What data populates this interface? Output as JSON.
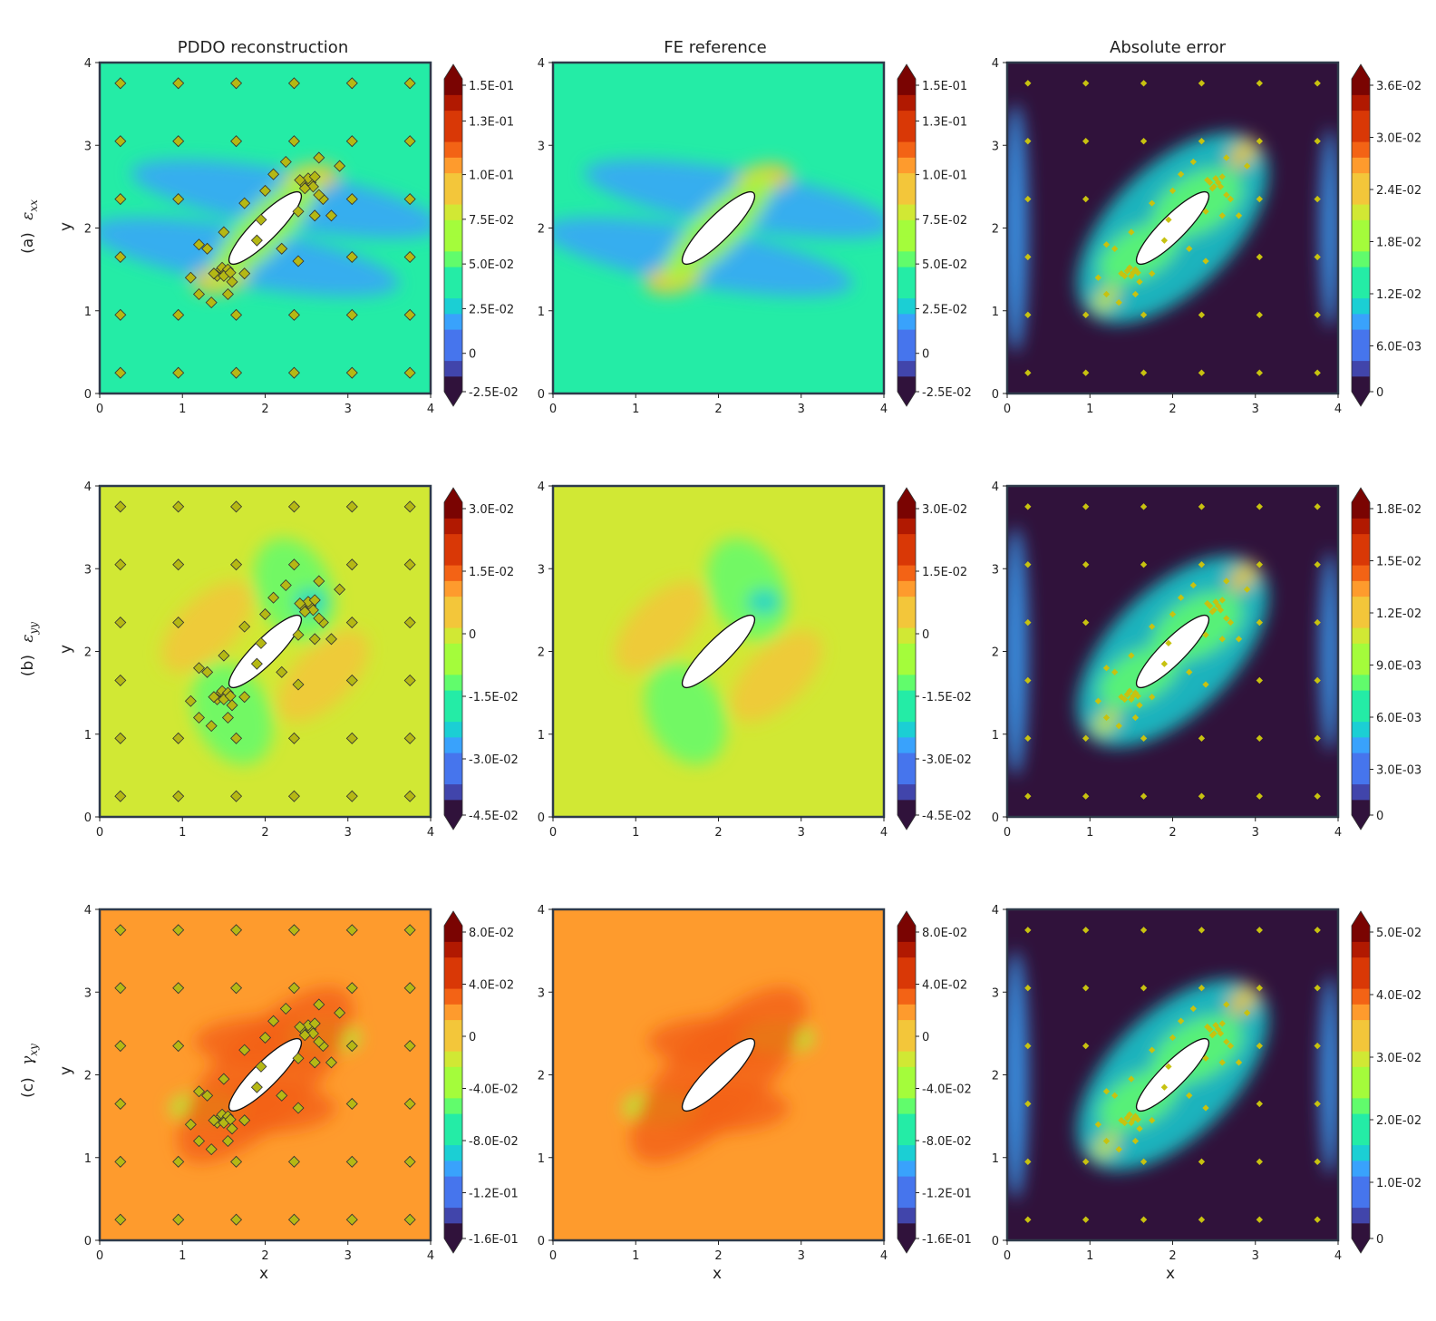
{
  "columns": [
    "PDDO reconstruction",
    "FE reference",
    "Absolute error"
  ],
  "rows": [
    {
      "tag": "(a)",
      "symbol": "ε",
      "sub": "xx"
    },
    {
      "tag": "(b)",
      "symbol": "ε",
      "sub": "yy"
    },
    {
      "tag": "(c)",
      "symbol": "γ",
      "sub": "xy"
    }
  ],
  "xlabel": "x",
  "ylabel": "y",
  "axis_ticks": [
    "0",
    "1",
    "2",
    "3",
    "4"
  ],
  "colormap": [
    "#30123b",
    "#4145ab",
    "#4675ed",
    "#39a2fc",
    "#1bcfd4",
    "#24eca6",
    "#61fc6c",
    "#a4fc3b",
    "#d1e834",
    "#f3c63a",
    "#fe9b2d",
    "#f36315",
    "#d93806",
    "#b11901",
    "#7a0402"
  ],
  "inclusion": {
    "center": [
      2.0,
      2.0
    ],
    "semi_major": 0.6,
    "semi_minor": 0.15,
    "angle_deg": 45
  },
  "chart_data": [
    {
      "type": "heatmap",
      "title": "PDDO reconstruction",
      "row": 0,
      "col": 0,
      "xlim": [
        0,
        4
      ],
      "ylim": [
        0,
        4
      ],
      "colorbar_ticks": [
        "-2.5E-02",
        "0",
        "2.5E-02",
        "5.0E-02",
        "7.5E-02",
        "1.0E-01",
        "1.3E-01",
        "1.5E-01"
      ],
      "colorbar_range": [
        -0.025,
        0.15
      ],
      "background_level": 0.38,
      "pattern": "xx",
      "sensor_markers": "large"
    },
    {
      "type": "heatmap",
      "title": "FE reference",
      "row": 0,
      "col": 1,
      "xlim": [
        0,
        4
      ],
      "ylim": [
        0,
        4
      ],
      "colorbar_ticks": [
        "-2.5E-02",
        "0",
        "2.5E-02",
        "5.0E-02",
        "7.5E-02",
        "1.0E-01",
        "1.3E-01",
        "1.5E-01"
      ],
      "colorbar_range": [
        -0.025,
        0.15
      ],
      "background_level": 0.34,
      "pattern": "xx",
      "sensor_markers": "none"
    },
    {
      "type": "heatmap",
      "title": "Absolute error",
      "row": 0,
      "col": 2,
      "xlim": [
        0,
        4
      ],
      "ylim": [
        0,
        4
      ],
      "colorbar_ticks": [
        "0",
        "6.0E-03",
        "1.2E-02",
        "1.8E-02",
        "2.4E-02",
        "3.0E-02",
        "3.6E-02"
      ],
      "colorbar_range": [
        0,
        0.036
      ],
      "background_level": 0.0,
      "pattern": "error",
      "sensor_markers": "small"
    },
    {
      "type": "heatmap",
      "title": "PDDO reconstruction",
      "row": 1,
      "col": 0,
      "xlim": [
        0,
        4
      ],
      "ylim": [
        0,
        4
      ],
      "colorbar_ticks": [
        "-4.5E-02",
        "-3.0E-02",
        "-1.5E-02",
        "0",
        "1.5E-02",
        "3.0E-02"
      ],
      "colorbar_range": [
        -0.045,
        0.03
      ],
      "background_level": 0.57,
      "pattern": "yy",
      "sensor_markers": "large"
    },
    {
      "type": "heatmap",
      "title": "FE reference",
      "row": 1,
      "col": 1,
      "xlim": [
        0,
        4
      ],
      "ylim": [
        0,
        4
      ],
      "colorbar_ticks": [
        "-4.5E-02",
        "-3.0E-02",
        "-1.5E-02",
        "0",
        "1.5E-02",
        "3.0E-02"
      ],
      "colorbar_range": [
        -0.045,
        0.03
      ],
      "background_level": 0.6,
      "pattern": "yy",
      "sensor_markers": "none"
    },
    {
      "type": "heatmap",
      "title": "Absolute error",
      "row": 1,
      "col": 2,
      "xlim": [
        0,
        4
      ],
      "ylim": [
        0,
        4
      ],
      "colorbar_ticks": [
        "0",
        "3.0E-03",
        "6.0E-03",
        "9.0E-03",
        "1.2E-02",
        "1.5E-02",
        "1.8E-02"
      ],
      "colorbar_range": [
        0,
        0.018
      ],
      "background_level": 0.0,
      "pattern": "error",
      "sensor_markers": "small"
    },
    {
      "type": "heatmap",
      "title": "PDDO reconstruction",
      "row": 2,
      "col": 0,
      "xlim": [
        0,
        4
      ],
      "ylim": [
        0,
        4
      ],
      "colorbar_ticks": [
        "-1.6E-01",
        "-1.2E-01",
        "-8.0E-02",
        "-4.0E-02",
        "0",
        "4.0E-02",
        "8.0E-02"
      ],
      "colorbar_range": [
        -0.16,
        0.08
      ],
      "background_level": 0.71,
      "pattern": "xy",
      "sensor_markers": "large"
    },
    {
      "type": "heatmap",
      "title": "FE reference",
      "row": 2,
      "col": 1,
      "xlim": [
        0,
        4
      ],
      "ylim": [
        0,
        4
      ],
      "colorbar_ticks": [
        "-1.6E-01",
        "-1.2E-01",
        "-8.0E-02",
        "-4.0E-02",
        "0",
        "4.0E-02",
        "8.0E-02"
      ],
      "colorbar_range": [
        -0.16,
        0.08
      ],
      "background_level": 0.72,
      "pattern": "xy",
      "sensor_markers": "none"
    },
    {
      "type": "heatmap",
      "title": "Absolute error",
      "row": 2,
      "col": 2,
      "xlim": [
        0,
        4
      ],
      "ylim": [
        0,
        4
      ],
      "colorbar_ticks": [
        "0",
        "1.0E-02",
        "2.0E-02",
        "3.0E-02",
        "4.0E-02",
        "5.0E-02"
      ],
      "colorbar_range": [
        0,
        0.05
      ],
      "background_level": 0.0,
      "pattern": "error",
      "sensor_markers": "small"
    }
  ],
  "sensors": [
    [
      0.25,
      0.25
    ],
    [
      0.95,
      0.25
    ],
    [
      1.65,
      0.25
    ],
    [
      2.35,
      0.25
    ],
    [
      3.05,
      0.25
    ],
    [
      3.75,
      0.25
    ],
    [
      0.25,
      0.95
    ],
    [
      0.95,
      0.95
    ],
    [
      1.65,
      0.95
    ],
    [
      2.35,
      0.95
    ],
    [
      3.05,
      0.95
    ],
    [
      3.75,
      0.95
    ],
    [
      0.25,
      1.65
    ],
    [
      3.05,
      1.65
    ],
    [
      3.75,
      1.65
    ],
    [
      0.25,
      2.35
    ],
    [
      0.95,
      2.35
    ],
    [
      3.05,
      2.35
    ],
    [
      3.75,
      2.35
    ],
    [
      0.25,
      3.05
    ],
    [
      0.95,
      3.05
    ],
    [
      1.65,
      3.05
    ],
    [
      2.35,
      3.05
    ],
    [
      3.05,
      3.05
    ],
    [
      3.75,
      3.05
    ],
    [
      0.25,
      3.75
    ],
    [
      0.95,
      3.75
    ],
    [
      1.65,
      3.75
    ],
    [
      2.35,
      3.75
    ],
    [
      3.05,
      3.75
    ],
    [
      3.75,
      3.75
    ],
    [
      1.45,
      1.48
    ],
    [
      1.48,
      1.52
    ],
    [
      1.52,
      1.46
    ],
    [
      1.55,
      1.5
    ],
    [
      1.42,
      1.42
    ],
    [
      1.38,
      1.45
    ],
    [
      1.5,
      1.42
    ],
    [
      1.58,
      1.46
    ],
    [
      2.45,
      2.55
    ],
    [
      2.5,
      2.5
    ],
    [
      2.55,
      2.55
    ],
    [
      2.52,
      2.6
    ],
    [
      2.58,
      2.5
    ],
    [
      2.6,
      2.62
    ],
    [
      2.48,
      2.48
    ],
    [
      2.42,
      2.58
    ],
    [
      1.2,
      1.8
    ],
    [
      1.1,
      1.4
    ],
    [
      1.3,
      1.75
    ],
    [
      1.6,
      1.35
    ],
    [
      1.75,
      1.45
    ],
    [
      1.9,
      1.85
    ],
    [
      2.2,
      1.75
    ],
    [
      2.4,
      1.6
    ],
    [
      2.1,
      2.65
    ],
    [
      2.25,
      2.8
    ],
    [
      2.0,
      2.45
    ],
    [
      2.7,
      2.35
    ],
    [
      2.8,
      2.15
    ],
    [
      2.9,
      2.75
    ],
    [
      2.65,
      2.85
    ],
    [
      2.4,
      2.2
    ],
    [
      1.35,
      1.1
    ],
    [
      1.55,
      1.2
    ],
    [
      1.2,
      1.2
    ],
    [
      1.75,
      2.3
    ],
    [
      1.95,
      2.1
    ],
    [
      2.6,
      2.15
    ],
    [
      2.65,
      2.4
    ],
    [
      1.5,
      1.95
    ]
  ]
}
